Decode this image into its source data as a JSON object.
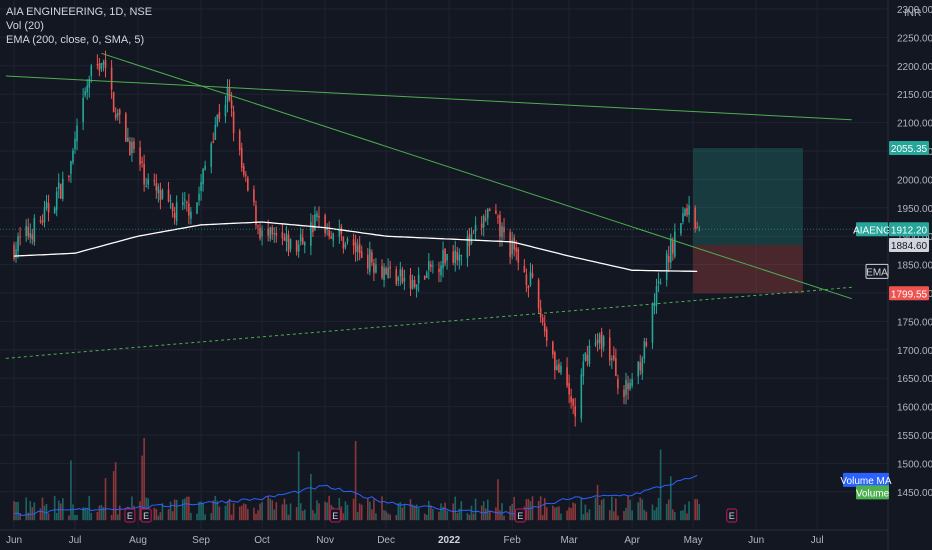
{
  "legend": {
    "title": "AIA ENGINEERING, 1D, NSE",
    "vol": "Vol (20)",
    "ema": "EMA (200, close, 0, SMA, 5)"
  },
  "currency": "INR",
  "colors": {
    "background": "#131722",
    "up": "#26a69a",
    "down": "#ef5350",
    "ema": "#ffffff",
    "trendline": "#4caf50",
    "volume_ma": "#2962ff",
    "target_zone": "#26a69a",
    "stop_zone": "#ef5350"
  },
  "badges": {
    "target": "2055.35",
    "symbol": "AIAENG",
    "last": "1912.20",
    "entry": "1884.60",
    "ema": "EMA",
    "stop": "1799.55",
    "volume_ma": "Volume MA",
    "volume": "Volume"
  },
  "earnings_marker": "E",
  "chart_data": {
    "type": "candlestick",
    "symbol": "AIAENG",
    "timeframe": "1D",
    "exchange": "NSE",
    "y_ticks": [
      "2300.00",
      "2250.00",
      "2200.00",
      "2150.00",
      "2100.00",
      "2050.00",
      "2000.00",
      "1950.00",
      "1900.00",
      "1850.00",
      "1800.00",
      "1750.00",
      "1700.00",
      "1650.00",
      "1600.00",
      "1550.00",
      "1500.00",
      "1450.00"
    ],
    "x_ticks": [
      "Jun",
      "Jul",
      "Aug",
      "Sep",
      "Oct",
      "Nov",
      "Dec",
      "2022",
      "Feb",
      "Mar",
      "Apr",
      "May",
      "Jun",
      "Jul"
    ],
    "ylim": [
      1400,
      2300
    ],
    "price_path": [
      [
        "2021-06-01",
        1880
      ],
      [
        "2021-06-15",
        1930
      ],
      [
        "2021-06-28",
        2010
      ],
      [
        "2021-07-08",
        2180
      ],
      [
        "2021-07-14",
        2210
      ],
      [
        "2021-07-22",
        2110
      ],
      [
        "2021-08-05",
        2000
      ],
      [
        "2021-08-18",
        1940
      ],
      [
        "2021-08-30",
        1960
      ],
      [
        "2021-09-08",
        2100
      ],
      [
        "2021-09-14",
        2150
      ],
      [
        "2021-09-22",
        2000
      ],
      [
        "2021-10-01",
        1900
      ],
      [
        "2021-10-18",
        1880
      ],
      [
        "2021-10-28",
        1930
      ],
      [
        "2021-11-15",
        1880
      ],
      [
        "2021-12-01",
        1840
      ],
      [
        "2021-12-15",
        1810
      ],
      [
        "2021-12-28",
        1860
      ],
      [
        "2022-01-12",
        1890
      ],
      [
        "2022-01-20",
        1940
      ],
      [
        "2022-01-28",
        1900
      ],
      [
        "2022-02-10",
        1820
      ],
      [
        "2022-02-22",
        1680
      ],
      [
        "2022-03-04",
        1590
      ],
      [
        "2022-03-10",
        1700
      ],
      [
        "2022-03-18",
        1720
      ],
      [
        "2022-03-28",
        1620
      ],
      [
        "2022-04-07",
        1700
      ],
      [
        "2022-04-14",
        1810
      ],
      [
        "2022-04-22",
        1900
      ],
      [
        "2022-04-28",
        1950
      ],
      [
        "2022-05-04",
        1912.2
      ]
    ],
    "ema_200": [
      [
        "2021-06-01",
        1865
      ],
      [
        "2021-07-01",
        1870
      ],
      [
        "2021-08-01",
        1900
      ],
      [
        "2021-09-01",
        1920
      ],
      [
        "2021-10-01",
        1925
      ],
      [
        "2021-11-01",
        1915
      ],
      [
        "2021-12-01",
        1900
      ],
      [
        "2022-01-01",
        1895
      ],
      [
        "2022-02-01",
        1890
      ],
      [
        "2022-03-01",
        1865
      ],
      [
        "2022-04-01",
        1840
      ],
      [
        "2022-05-04",
        1838
      ]
    ],
    "volume_ma": [
      [
        "2021-06-01",
        1410
      ],
      [
        "2021-07-01",
        1418
      ],
      [
        "2021-08-01",
        1422
      ],
      [
        "2021-09-01",
        1430
      ],
      [
        "2021-10-01",
        1438
      ],
      [
        "2021-11-01",
        1460
      ],
      [
        "2021-12-01",
        1432
      ],
      [
        "2022-01-01",
        1418
      ],
      [
        "2022-02-01",
        1412
      ],
      [
        "2022-03-01",
        1438
      ],
      [
        "2022-04-01",
        1445
      ],
      [
        "2022-05-04",
        1478
      ]
    ],
    "trendlines": [
      {
        "from": [
          "2021-05-28",
          2182
        ],
        "to": [
          "2022-07-18",
          2105
        ],
        "style": "solid"
      },
      {
        "from": [
          "2021-07-14",
          2222
        ],
        "to": [
          "2022-07-18",
          1790
        ],
        "style": "solid"
      },
      {
        "from": [
          "2021-05-28",
          1685
        ],
        "to": [
          "2022-07-18",
          1810
        ],
        "style": "dashed"
      }
    ],
    "position": {
      "entry": 1884.6,
      "target": 2055.35,
      "stop": 1799.55,
      "from": "2022-05-01",
      "to": "2022-06-24"
    },
    "last_price": 1912.2,
    "earnings_dates": [
      "2021-07-28",
      "2021-08-05",
      "2021-11-06",
      "2022-02-05",
      "2022-05-20"
    ]
  }
}
